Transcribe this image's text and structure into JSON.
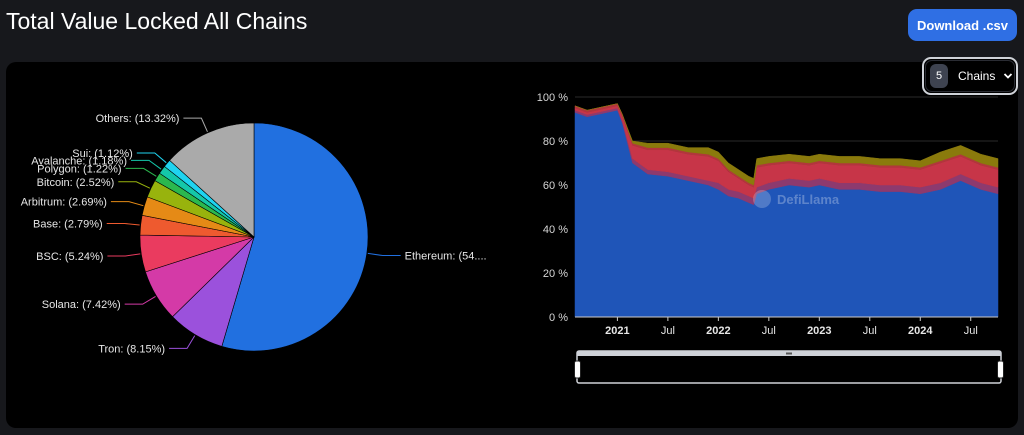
{
  "header": {
    "title": "Total Value Locked All Chains",
    "download_label": "Download .csv"
  },
  "selector": {
    "count": "5",
    "label": "Chains"
  },
  "watermark": "DefiLlama",
  "chart_data": [
    {
      "type": "pie",
      "slices": [
        {
          "label": "Ethereum: (54....",
          "name": "Ethereum",
          "value": 54.8,
          "color": "#2170e0"
        },
        {
          "label": "Tron: (8.15%)",
          "name": "Tron",
          "value": 8.15,
          "color": "#9b51dc"
        },
        {
          "label": "Solana: (7.42%)",
          "name": "Solana",
          "value": 7.42,
          "color": "#d43aa7"
        },
        {
          "label": "BSC: (5.24%)",
          "name": "BSC",
          "value": 5.24,
          "color": "#ea3b5f"
        },
        {
          "label": "Base: (2.79%)",
          "name": "Base",
          "value": 2.79,
          "color": "#ee5a2f"
        },
        {
          "label": "Arbitrum: (2.69%)",
          "name": "Arbitrum",
          "value": 2.69,
          "color": "#e58a16"
        },
        {
          "label": "Bitcoin: (2.52%)",
          "name": "Bitcoin",
          "value": 2.52,
          "color": "#98b30d"
        },
        {
          "label": "Polygon: (1.22%)",
          "name": "Polygon",
          "value": 1.22,
          "color": "#2bb84e"
        },
        {
          "label": "Avalanche: (1.18%)",
          "name": "Avalanche",
          "value": 1.18,
          "color": "#14c7a9"
        },
        {
          "label": "Sui: (1.12%)",
          "name": "Sui",
          "value": 1.12,
          "color": "#1fd3f0"
        },
        {
          "label": "Others: (13.32%)",
          "name": "Others",
          "value": 13.32,
          "color": "#aaaaaa"
        }
      ]
    },
    {
      "type": "area",
      "stacked_percent": true,
      "ylim": [
        0,
        100
      ],
      "y_ticks": [
        "0 %",
        "20 %",
        "40 %",
        "60 %",
        "80 %",
        "100 %"
      ],
      "x_ticks": [
        "2021",
        "Jul",
        "2022",
        "Jul",
        "2023",
        "Jul",
        "2024",
        "Jul"
      ],
      "x_tick_years": [
        2021.0,
        2021.5,
        2022.0,
        2022.5,
        2023.0,
        2023.5,
        2024.0,
        2024.5
      ],
      "x_range": [
        2020.58,
        2024.77
      ],
      "colors": [
        "#1f55b8",
        "#8d3a6e",
        "#c73548",
        "#b2363c",
        "#8a7a0c"
      ],
      "x": [
        2020.58,
        2020.7,
        2020.8,
        2020.9,
        2021.0,
        2021.05,
        2021.15,
        2021.3,
        2021.5,
        2021.7,
        2021.9,
        2022.0,
        2022.1,
        2022.2,
        2022.3,
        2022.35,
        2022.38,
        2022.5,
        2022.7,
        2022.9,
        2023.0,
        2023.2,
        2023.4,
        2023.6,
        2023.8,
        2024.0,
        2024.2,
        2024.4,
        2024.5,
        2024.6,
        2024.77
      ],
      "series": [
        {
          "values": [
            93,
            91,
            92,
            93,
            94,
            88,
            70,
            65,
            64,
            62,
            60,
            58,
            55,
            54,
            52,
            51,
            56,
            58,
            60,
            59,
            60,
            58,
            58,
            57,
            57,
            56,
            58,
            62,
            60,
            58,
            56
          ]
        },
        {
          "values": [
            1,
            1,
            1,
            1,
            1,
            1,
            2,
            2,
            2,
            2,
            2,
            3,
            3,
            3,
            3,
            3,
            3,
            3,
            3,
            3,
            3,
            3,
            3,
            3,
            3,
            3,
            3,
            3,
            3,
            3,
            3
          ]
        },
        {
          "values": [
            1,
            1,
            1,
            1,
            1,
            2,
            6,
            9,
            10,
            10,
            11,
            10,
            8,
            6,
            5,
            5,
            9,
            8,
            7,
            7,
            7,
            8,
            8,
            8,
            8,
            8,
            9,
            8,
            8,
            8,
            8
          ]
        },
        {
          "values": [
            1,
            1,
            1,
            1,
            1,
            1,
            1,
            1,
            1,
            1,
            1,
            1,
            1,
            1,
            1,
            1,
            1,
            1,
            1,
            1,
            1,
            1,
            1,
            1,
            1,
            1,
            1,
            1,
            1,
            1,
            1
          ]
        },
        {
          "values": [
            0,
            0,
            0,
            0,
            0,
            0,
            1,
            2,
            2,
            2,
            3,
            3,
            3,
            3,
            3,
            3,
            3,
            3,
            3,
            3,
            3,
            3,
            3,
            3,
            3,
            3,
            4,
            4,
            4,
            4,
            4
          ]
        }
      ]
    }
  ]
}
